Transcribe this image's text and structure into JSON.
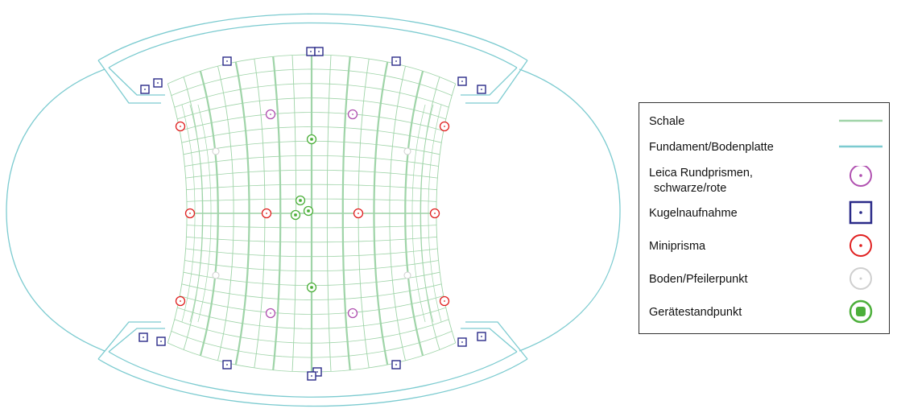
{
  "legend": {
    "shell": {
      "label": "Schale",
      "color": "#9fd4a8"
    },
    "foundation": {
      "label": "Fundament/Bodenplatte",
      "color": "#7ccbd0"
    },
    "leica_prism": {
      "label_line1": "Leica Rundprismen,",
      "label_line2": "schwarze/rote",
      "color": "#b050b0"
    },
    "ball_mount": {
      "label": "Kugelnaufnahme",
      "color": "#2a2a88"
    },
    "mini_prism": {
      "label": "Miniprisma",
      "color": "#e02020"
    },
    "ground_point": {
      "label": "Boden/Pfeilerpunkt",
      "color": "#cfcfcf"
    },
    "instrument_station": {
      "label": "Gerätestandpunkt",
      "color": "#4caf3a"
    }
  }
}
